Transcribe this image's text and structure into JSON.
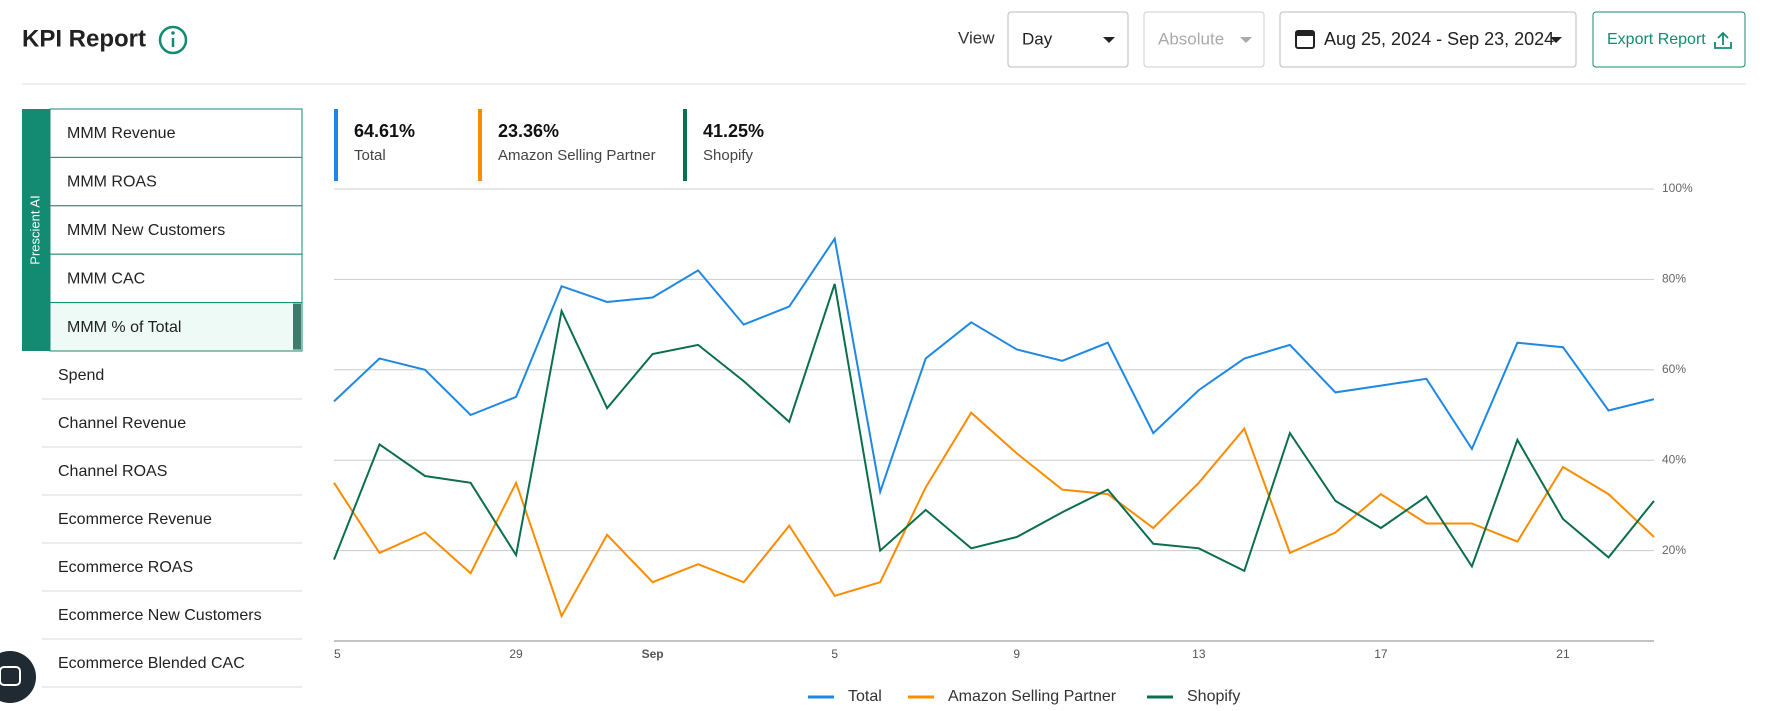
{
  "header": {
    "title": "KPI Report",
    "view_label": "View",
    "view_value": "Day",
    "mode_value": "Absolute",
    "date_range": "Aug 25, 2024 - Sep 23, 2024",
    "export": "Export Report"
  },
  "sidebar": {
    "group_label": "Prescient AI",
    "group_items": [
      "MMM Revenue",
      "MMM ROAS",
      "MMM New Customers",
      "MMM CAC",
      "MMM % of Total"
    ],
    "items": [
      "Spend",
      "Channel Revenue",
      "Channel ROAS",
      "Ecommerce Revenue",
      "Ecommerce ROAS",
      "Ecommerce New Customers",
      "Ecommerce Blended CAC"
    ]
  },
  "cards": [
    {
      "value": "64.61%",
      "label": "Total"
    },
    {
      "value": "23.36%",
      "label": "Amazon Selling Partner"
    },
    {
      "value": "41.25%",
      "label": "Shopify"
    }
  ],
  "chart_data": {
    "type": "line",
    "categories": [
      "5",
      null,
      null,
      null,
      "29",
      null,
      null,
      "Sep",
      null,
      null,
      null,
      "5",
      null,
      null,
      null,
      "9",
      null,
      null,
      null,
      "13",
      null,
      null,
      null,
      "17",
      null,
      null,
      null,
      "21",
      null,
      null
    ],
    "series": [
      {
        "name": "Total",
        "color": "#1e88e5",
        "values": [
          53,
          62.5,
          60,
          50,
          54,
          78.5,
          75,
          76,
          82,
          70,
          74,
          89,
          33,
          62.5,
          70.5,
          64.5,
          62,
          66,
          46,
          55.5,
          62.5,
          65.5,
          55,
          56.5,
          58,
          42.5,
          66,
          65,
          51,
          53.5
        ]
      },
      {
        "name": "Amazon Selling Partner",
        "color": "#fb8c00",
        "values": [
          35,
          19.5,
          24,
          15,
          35,
          5.5,
          23.5,
          13,
          17,
          13,
          25.5,
          10,
          13,
          34,
          50.5,
          41.5,
          33.5,
          32.5,
          25,
          35,
          47,
          19.5,
          24,
          32.5,
          26,
          26,
          22,
          38.5,
          32.5,
          23
        ]
      },
      {
        "name": "Shopify",
        "color": "#0b6e4f",
        "values": [
          18,
          43.5,
          36.5,
          35,
          19,
          73,
          51.5,
          63.5,
          65.5,
          57.5,
          48.5,
          79,
          20,
          29,
          20.5,
          23,
          28.5,
          33.5,
          21.5,
          20.5,
          15.5,
          46,
          31,
          25,
          32,
          16.5,
          44.5,
          27,
          18.5,
          31
        ]
      }
    ],
    "ylim": [
      0,
      100
    ],
    "yticks": [
      {
        "value": 20,
        "label": "20%"
      },
      {
        "value": 40,
        "label": "40%"
      },
      {
        "value": 60,
        "label": "60%"
      },
      {
        "value": 80,
        "label": "80%"
      },
      {
        "value": 100,
        "label": "100%"
      }
    ],
    "grid": true
  }
}
